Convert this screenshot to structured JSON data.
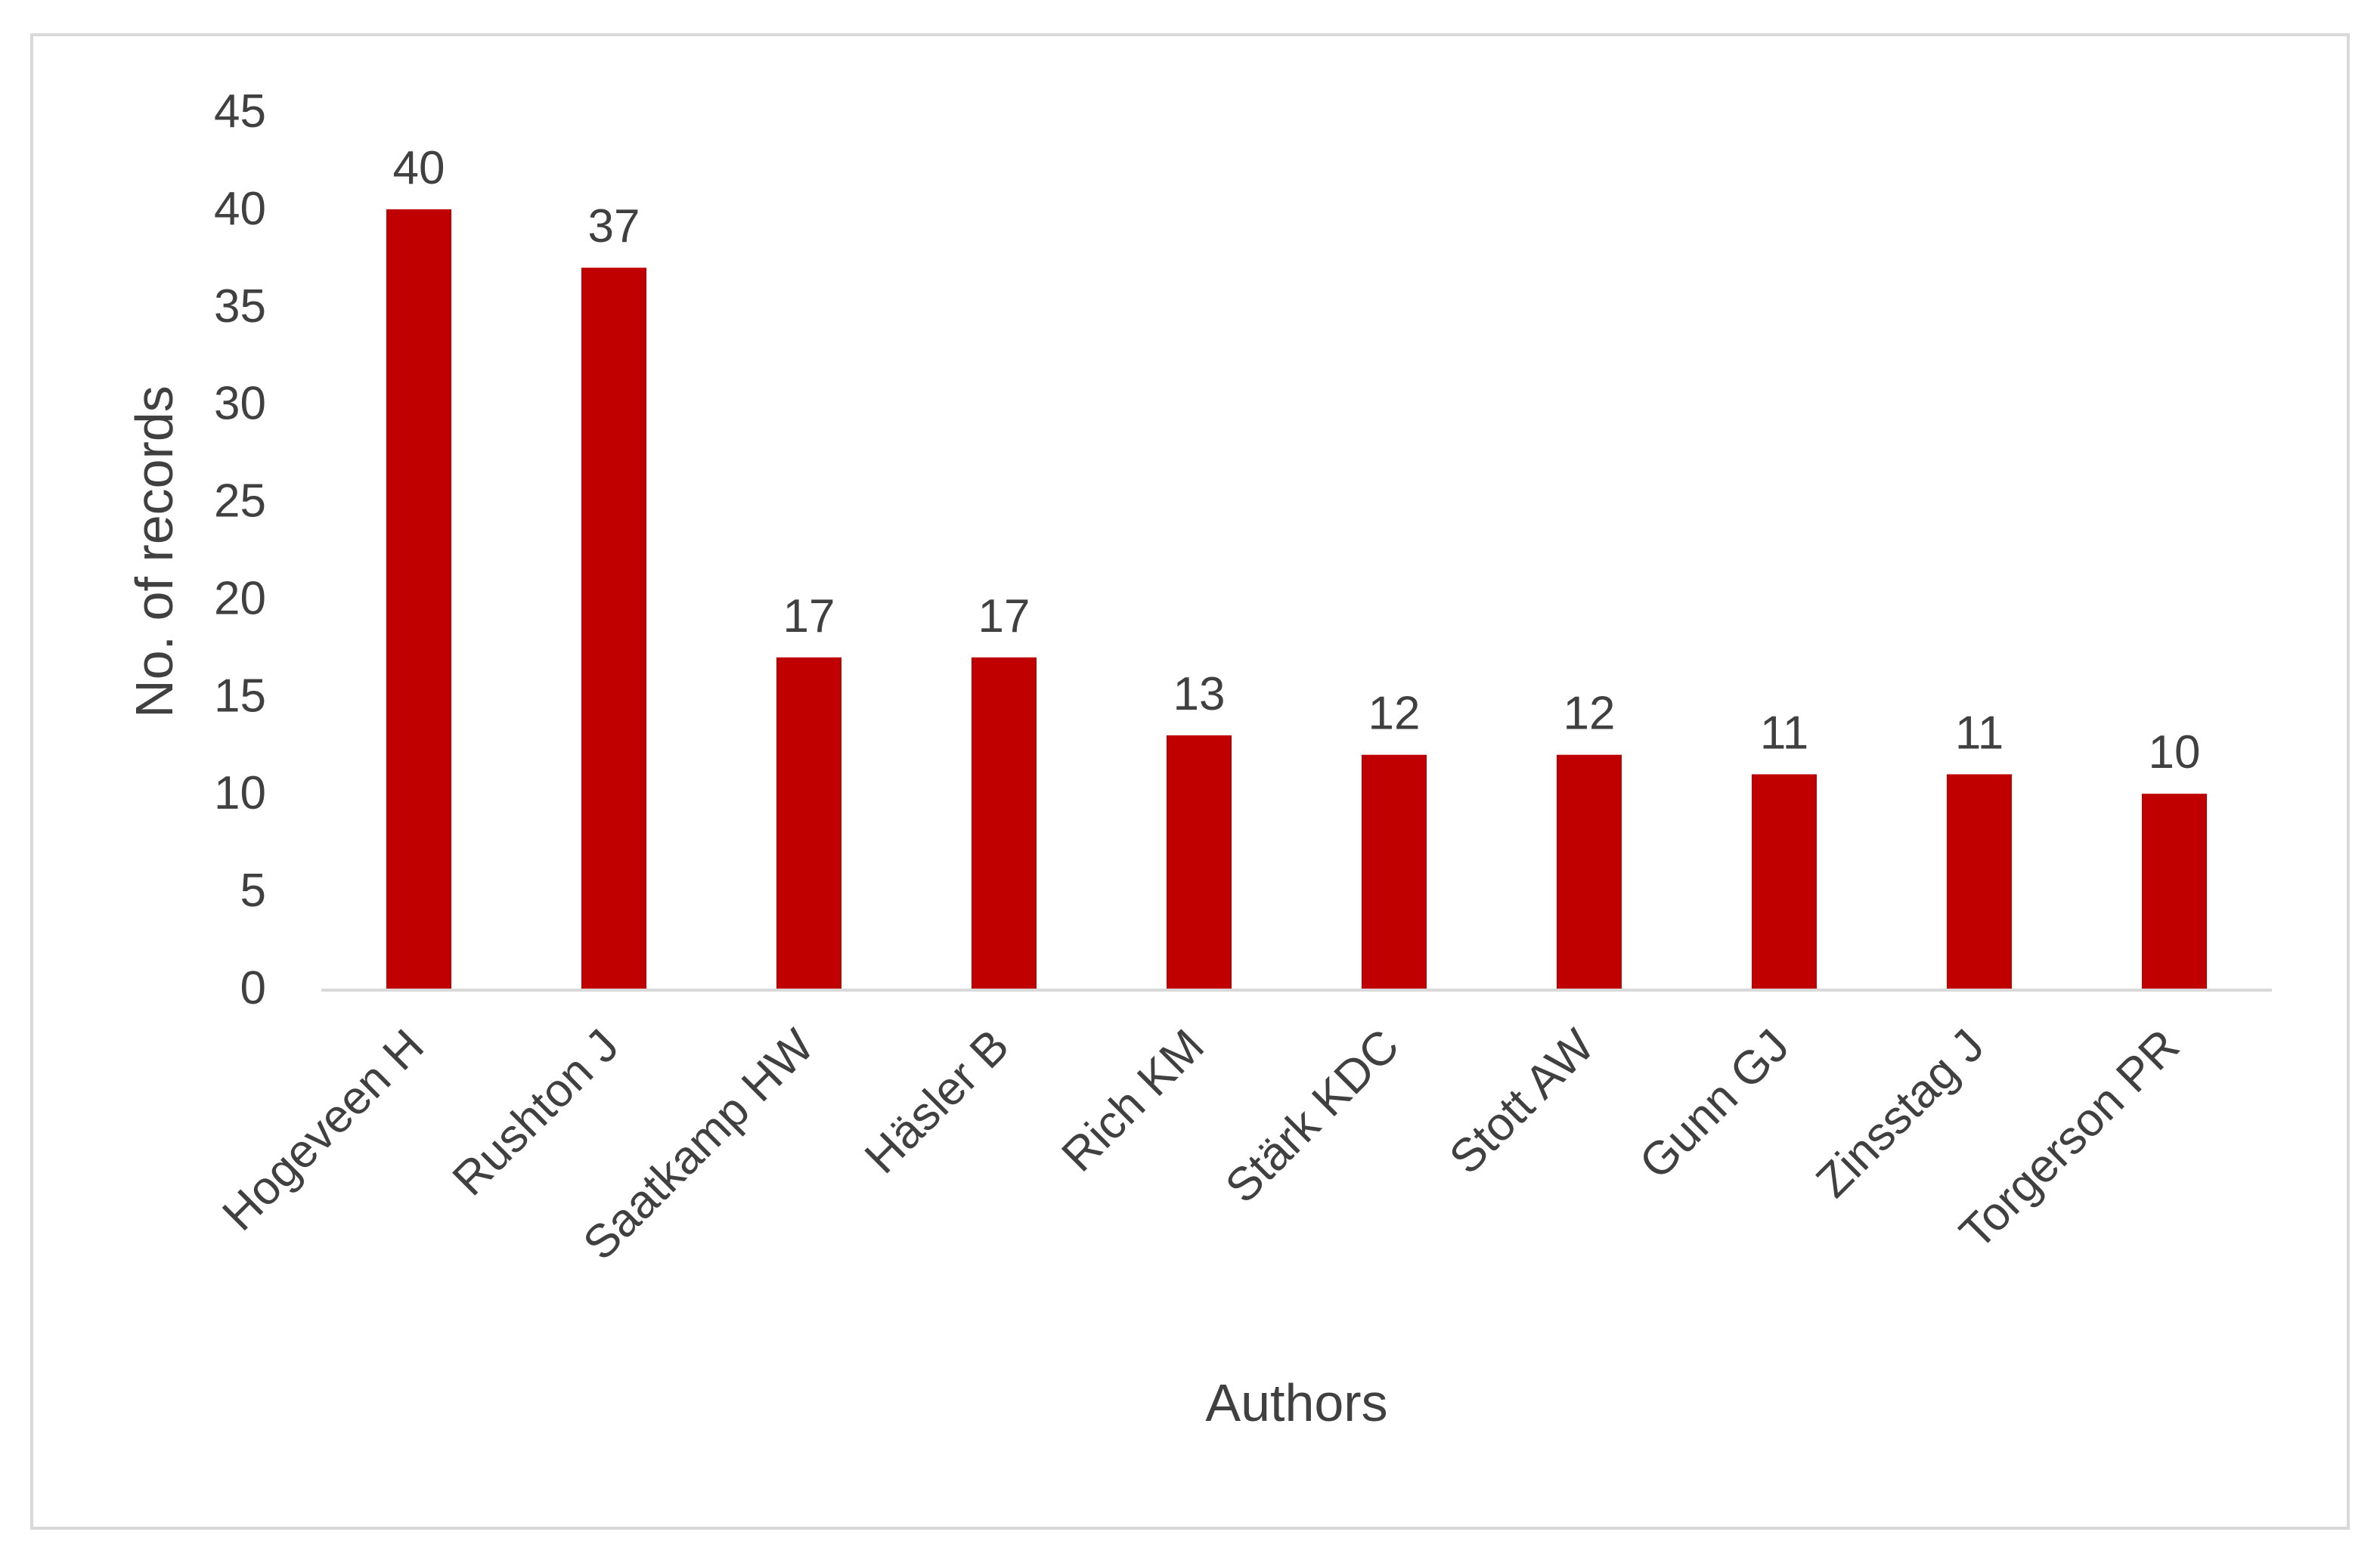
{
  "chart_data": {
    "type": "bar",
    "title": "",
    "xlabel": "Authors",
    "ylabel": "No. of records",
    "categories": [
      "Hogeveen H",
      "Rushton J",
      "Saatkamp HW",
      "Häsler B",
      "Rich KM",
      "Stärk KDC",
      "Stott AW",
      "Gunn GJ",
      "Zinsstag J",
      "Torgerson PR"
    ],
    "values": [
      40,
      37,
      17,
      17,
      13,
      12,
      12,
      11,
      11,
      10
    ],
    "ylim": [
      0,
      45
    ],
    "yticks": [
      0,
      5,
      10,
      15,
      20,
      25,
      30,
      35,
      40,
      45
    ],
    "data_labels": true,
    "grid": false,
    "legend": "none",
    "bar_color": "#c00000",
    "axis_color": "#d9d9d9",
    "text_color": "#404040"
  }
}
